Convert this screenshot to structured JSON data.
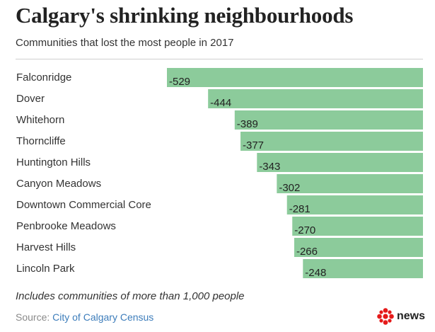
{
  "title": "Calgary's shrinking neighbourhoods",
  "subtitle": "Communities that lost the most people in 2017",
  "footnote": "Includes communities of more than 1,000 people",
  "source": {
    "prefix": "Source: ",
    "name": "City of Calgary Census"
  },
  "logo": {
    "word": "news",
    "icon": "cbc-gem-icon"
  },
  "colors": {
    "bar": "#8ccb9b",
    "brand_red": "#e51a1a",
    "link": "#3d7dbb"
  },
  "chart_data": {
    "type": "bar",
    "orientation": "horizontal",
    "categories": [
      "Falconridge",
      "Dover",
      "Whitehorn",
      "Thorncliffe",
      "Huntington Hills",
      "Canyon Meadows",
      "Downtown Commercial Core",
      "Penbrooke Meadows",
      "Harvest Hills",
      "Lincoln Park"
    ],
    "values": [
      -529,
      -444,
      -389,
      -377,
      -343,
      -302,
      -281,
      -270,
      -266,
      -248
    ],
    "data_labels": [
      "-529",
      "-444",
      "-389",
      "-377",
      "-343",
      "-302",
      "-281",
      "-270",
      "-266",
      "-248"
    ],
    "title": "Calgary's shrinking neighbourhoods",
    "subtitle": "Communities that lost the most people in 2017",
    "xlim": [
      -600,
      0
    ],
    "grid": false,
    "legend": "none"
  }
}
